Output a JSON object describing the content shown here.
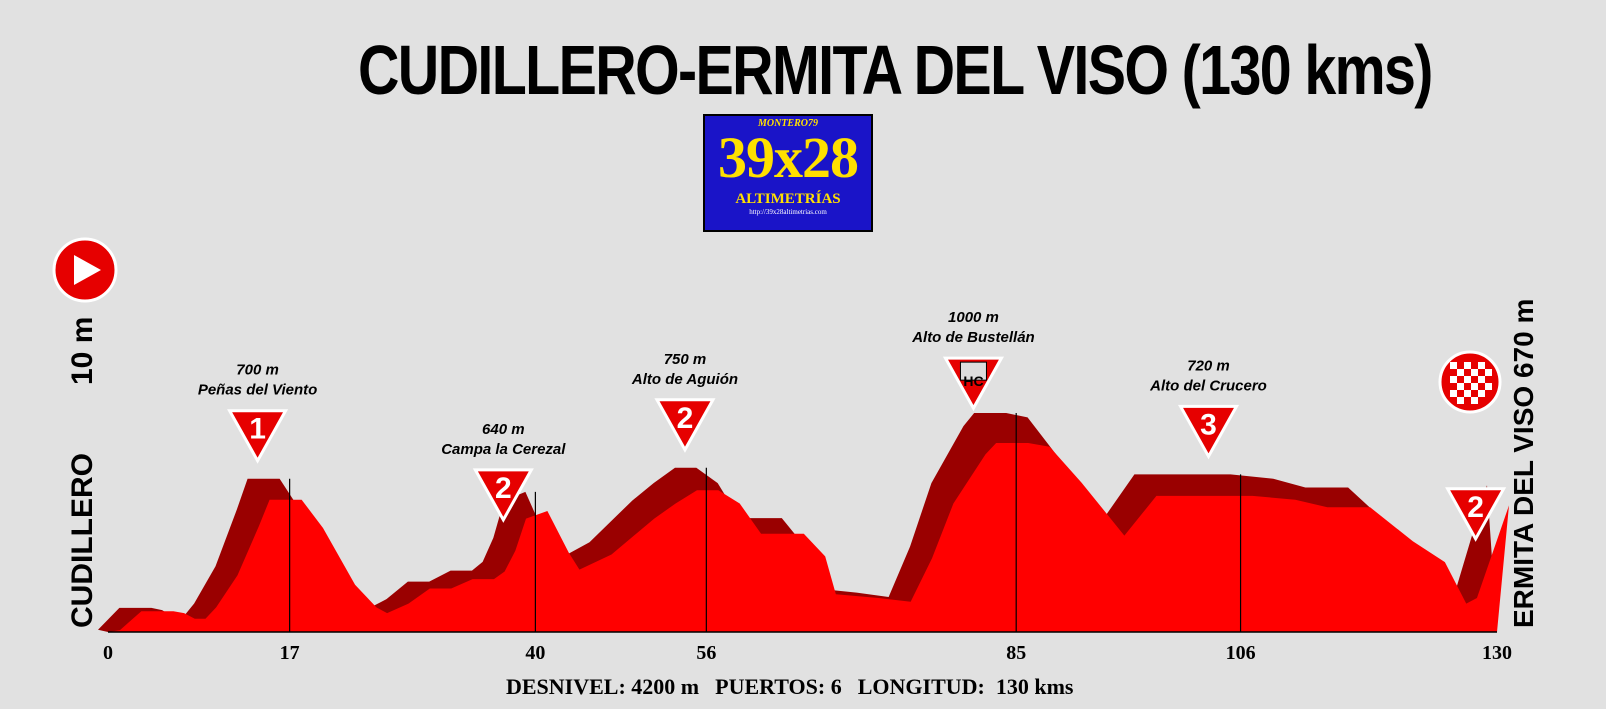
{
  "title": "CUDILLERO-ERMITA DEL VISO (130 kms)",
  "logo": {
    "author": "MONTERO79",
    "brand": "39x28",
    "subtitle": "ALTIMETRÍAS",
    "url": "http://39x28altimetrias.com"
  },
  "start": {
    "name": "CUDILLERO",
    "altitude": "10 m"
  },
  "finish": {
    "name": "ERMITA DEL VISO",
    "altitude": "670 m"
  },
  "footer": {
    "desnivel": "DESNIVEL: 4200 m",
    "puertos": "PUERTOS: 6",
    "longitud": "LONGITUD:  130 kms"
  },
  "colors": {
    "background": "#e1e1e1",
    "profile_red": "#ff0000",
    "profile_shadow": "#9a0000",
    "marker_red": "#e60000",
    "logo_blue": "#1a14c8",
    "logo_yellow": "#ffe000"
  },
  "chart_data": {
    "type": "area",
    "x_unit": "km",
    "y_unit": "m",
    "xlim": [
      0,
      130
    ],
    "x_ticks": [
      0,
      17,
      40,
      56,
      85,
      106,
      130
    ],
    "profile": [
      [
        0,
        10
      ],
      [
        2,
        110
      ],
      [
        5,
        110
      ],
      [
        6,
        100
      ],
      [
        7,
        70
      ],
      [
        8,
        70
      ],
      [
        9,
        130
      ],
      [
        11,
        300
      ],
      [
        13,
        560
      ],
      [
        14,
        700
      ],
      [
        17,
        700
      ],
      [
        19,
        550
      ],
      [
        22,
        250
      ],
      [
        24,
        130
      ],
      [
        25,
        100
      ],
      [
        27,
        150
      ],
      [
        29,
        230
      ],
      [
        31,
        230
      ],
      [
        33,
        280
      ],
      [
        35,
        280
      ],
      [
        36,
        320
      ],
      [
        37,
        430
      ],
      [
        38,
        600
      ],
      [
        40,
        640
      ],
      [
        42,
        420
      ],
      [
        43,
        330
      ],
      [
        46,
        410
      ],
      [
        50,
        600
      ],
      [
        52,
        680
      ],
      [
        54,
        750
      ],
      [
        56,
        750
      ],
      [
        58,
        680
      ],
      [
        60,
        520
      ],
      [
        64,
        520
      ],
      [
        66,
        400
      ],
      [
        67,
        200
      ],
      [
        71,
        180
      ],
      [
        74,
        160
      ],
      [
        76,
        390
      ],
      [
        78,
        680
      ],
      [
        81,
        940
      ],
      [
        82,
        1000
      ],
      [
        85,
        1000
      ],
      [
        87,
        980
      ],
      [
        90,
        790
      ],
      [
        94,
        510
      ],
      [
        97,
        720
      ],
      [
        100,
        720
      ],
      [
        104,
        720
      ],
      [
        106,
        720
      ],
      [
        110,
        700
      ],
      [
        113,
        660
      ],
      [
        117,
        660
      ],
      [
        121,
        480
      ],
      [
        124,
        370
      ],
      [
        126,
        150
      ],
      [
        127,
        180
      ],
      [
        130,
        670
      ]
    ],
    "passes": [
      {
        "name": "Peñas del Viento",
        "km": 14,
        "altitude": "700 m",
        "category": "1"
      },
      {
        "name": "Campa la Cerezal",
        "km": 37,
        "altitude": "640 m",
        "category": "2"
      },
      {
        "name": "Alto de Aguión",
        "km": 54,
        "altitude": "750 m",
        "category": "2"
      },
      {
        "name": "Alto de Bustellán",
        "km": 81,
        "altitude": "1000 m",
        "category": "HC"
      },
      {
        "name": "Alto del Crucero",
        "km": 103,
        "altitude": "720 m",
        "category": "3"
      },
      {
        "name": "",
        "km": 128,
        "altitude": "",
        "category": "2"
      }
    ]
  }
}
